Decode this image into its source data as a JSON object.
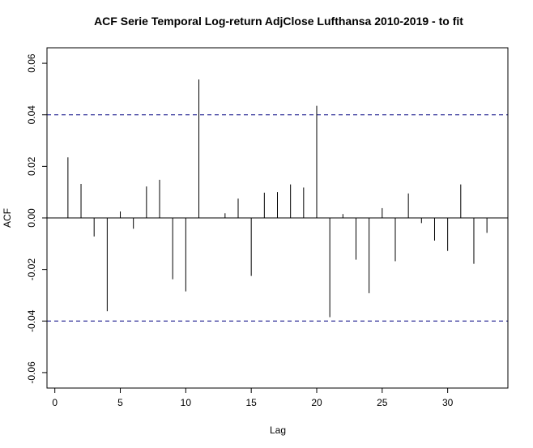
{
  "chart_data": {
    "type": "acf",
    "title": "ACF Serie Temporal Log-return AdjClose Lufthansa 2010-2019 - to fit",
    "xlabel": "Lag",
    "ylabel": "ACF",
    "xlim": [
      -0.6,
      34.6
    ],
    "ylim": [
      -0.066,
      0.066
    ],
    "x_ticks": [
      0,
      5,
      10,
      15,
      20,
      25,
      30
    ],
    "x_tick_labels": [
      "0",
      "5",
      "10",
      "15",
      "20",
      "25",
      "30"
    ],
    "y_ticks": [
      -0.06,
      -0.04,
      -0.02,
      0.0,
      0.02,
      0.04,
      0.06
    ],
    "y_tick_labels": [
      "-0.06",
      "-0.04",
      "-0.02",
      "0.00",
      "0.02",
      "0.04",
      "0.06"
    ],
    "confidence_bound": 0.04,
    "confidence_color": "#000080",
    "lags": [
      1,
      2,
      3,
      4,
      5,
      6,
      7,
      8,
      9,
      10,
      11,
      12,
      13,
      14,
      15,
      16,
      17,
      18,
      19,
      20,
      21,
      22,
      23,
      24,
      25,
      26,
      27,
      28,
      29,
      30,
      31,
      32,
      33
    ],
    "values": [
      0.0235,
      0.0132,
      -0.0072,
      -0.0362,
      0.0025,
      -0.0042,
      0.0122,
      0.0148,
      -0.0238,
      -0.0285,
      0.0537,
      0.0,
      0.0018,
      0.0075,
      -0.0225,
      0.0098,
      0.01,
      0.013,
      0.0118,
      0.0435,
      -0.0385,
      0.0015,
      -0.0162,
      -0.0292,
      0.0038,
      -0.0168,
      0.0095,
      -0.002,
      -0.0088,
      -0.0128,
      0.013,
      -0.0178,
      -0.0058
    ]
  }
}
